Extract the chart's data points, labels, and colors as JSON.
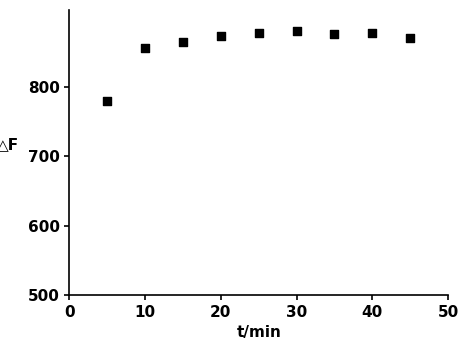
{
  "x": [
    5,
    10,
    15,
    20,
    25,
    30,
    35,
    40,
    45
  ],
  "y": [
    780,
    855,
    865,
    873,
    877,
    880,
    876,
    878,
    870
  ],
  "xlabel": "t/min",
  "ylabel": "△F",
  "xlim": [
    0,
    50
  ],
  "ylim": [
    500,
    910
  ],
  "yticks": [
    500,
    600,
    700,
    800
  ],
  "xticks": [
    0,
    10,
    20,
    30,
    40,
    50
  ],
  "marker": "s",
  "marker_color": "#000000",
  "marker_size": 6,
  "dotted_line_color": "#aaaaaa",
  "background_color": "#ffffff",
  "tick_label_fontsize": 11,
  "axis_label_fontsize": 11
}
